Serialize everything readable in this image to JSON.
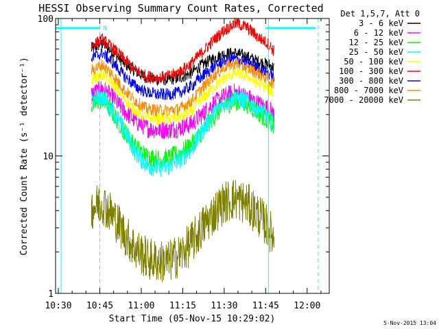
{
  "chart_data": {
    "type": "line",
    "title": "HESSI Observing Summary Count Rates, Corrected",
    "xlabel": "Start Time (05-Nov-15 10:29:02)",
    "ylabel": "Corrected Count Rate (s⁻¹ detector⁻¹)",
    "y_scale": "log",
    "ylim": [
      1,
      100
    ],
    "xlim": [
      "10:29",
      "12:08"
    ],
    "x_ticks": [
      "10:30",
      "10:45",
      "11:00",
      "11:15",
      "11:30",
      "11:45",
      "12:00"
    ],
    "y_ticks": [
      "1",
      "10",
      "100"
    ],
    "legend_title": "Det 1,5,7, Att 0",
    "legend_position": "right",
    "footer_date": "5-Nov-2015 13:04",
    "annotations": {
      "night_bars": [
        [
          "10:29",
          "10:45"
        ],
        [
          "11:45",
          "12:03"
        ]
      ],
      "saa_flag": "N",
      "vertical_lines_solid": [
        "10:31",
        "11:46"
      ],
      "vertical_lines_dashed": [
        "10:45",
        "12:04"
      ]
    },
    "x": [
      "10:42",
      "10:46",
      "10:50",
      "10:54",
      "10:58",
      "11:02",
      "11:06",
      "11:10",
      "11:14",
      "11:18",
      "11:22",
      "11:26",
      "11:30",
      "11:34",
      "11:38",
      "11:42",
      "11:46",
      "11:48"
    ],
    "series": [
      {
        "name": "3 - 6 keV",
        "color": "#000000",
        "values": [
          60,
          66,
          56,
          47,
          41,
          37,
          36,
          36,
          37,
          40,
          46,
          51,
          55,
          56,
          53,
          49,
          46,
          44
        ]
      },
      {
        "name": "6 - 12 keV",
        "color": "#ff00ff",
        "values": [
          28,
          31,
          26,
          21,
          18,
          16,
          15.5,
          15.5,
          16,
          17,
          20,
          24,
          27,
          29,
          27,
          24,
          22,
          20
        ]
      },
      {
        "name": "12 - 25 keV",
        "color": "#00ff00",
        "values": [
          23,
          26,
          20,
          15,
          11.5,
          10,
          9.5,
          9.7,
          10.5,
          12,
          15,
          19,
          23,
          25,
          24,
          21,
          18,
          16
        ]
      },
      {
        "name": "25 - 50 keV",
        "color": "#00ffff",
        "values": [
          25,
          27,
          21,
          15,
          10.5,
          8.5,
          8.2,
          8.4,
          9.5,
          11,
          15,
          20,
          24,
          27,
          25,
          22,
          19,
          17
        ]
      },
      {
        "name": "50 - 100 keV",
        "color": "#ffff00",
        "values": [
          36,
          39,
          33,
          26,
          21,
          19,
          18.5,
          18.5,
          19,
          21,
          26,
          31,
          37,
          40,
          38,
          34,
          31,
          28
        ]
      },
      {
        "name": "100 - 300 keV",
        "color": "#ff0000",
        "values": [
          64,
          70,
          60,
          50,
          42,
          38,
          37,
          38,
          41,
          47,
          57,
          69,
          82,
          92,
          87,
          74,
          65,
          58
        ]
      },
      {
        "name": "300 - 800 keV",
        "color": "#0000ff",
        "values": [
          52,
          56,
          47,
          38,
          32,
          29,
          28,
          28,
          29,
          32,
          38,
          44,
          49,
          51,
          48,
          44,
          40,
          37
        ]
      },
      {
        "name": "800 - 7000 keV",
        "color": "#ff8c00",
        "values": [
          42,
          46,
          38,
          30,
          25,
          22,
          21.5,
          21.5,
          22,
          25,
          31,
          38,
          44,
          47,
          44,
          40,
          36,
          33
        ]
      },
      {
        "name": "7000 - 20000 keV",
        "color": "#808000",
        "values": [
          4.2,
          4.6,
          3.6,
          2.7,
          2.1,
          1.8,
          1.7,
          1.7,
          1.9,
          2.3,
          3.0,
          3.8,
          4.6,
          4.9,
          4.5,
          3.8,
          3.0,
          2.5
        ]
      }
    ]
  }
}
